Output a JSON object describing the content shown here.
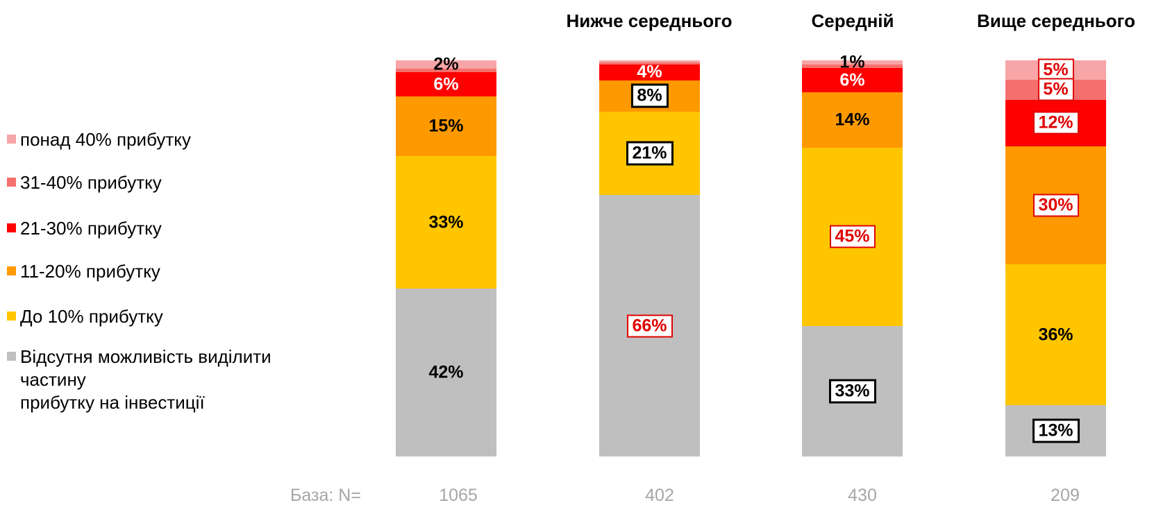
{
  "palette": {
    "pink": "#F7A5A6",
    "salmon": "#F4706E",
    "red": "#FE0000",
    "orange": "#FF9900",
    "yellow": "#FFC600",
    "gray": "#BFBFBF",
    "highlight_red": "#E00000",
    "muted_text": "#A6A6A6"
  },
  "legend": {
    "items": [
      {
        "label": "понад 40% прибутку",
        "color": "pink"
      },
      {
        "label": "31-40% прибутку",
        "color": "salmon"
      },
      {
        "label": "21-30% прибутку",
        "color": "red"
      },
      {
        "label": "11-20% прибутку",
        "color": "orange"
      },
      {
        "label": "До 10% прибутку",
        "color": "yellow"
      },
      {
        "label": "Відсутня можливість виділити частину\nприбутку на інвестиції",
        "color": "gray"
      }
    ]
  },
  "base_row": {
    "label": "База: N=",
    "values": [
      "1065",
      "402",
      "430",
      "209"
    ]
  },
  "chart_data": {
    "type": "bar",
    "subtype": "100%-stacked-columns",
    "unit": "%",
    "categories": [
      "",
      "Нижче середнього",
      "Середній",
      "Вище середнього"
    ],
    "base_n": [
      1065,
      402,
      430,
      209
    ],
    "series_order_top_to_bottom": [
      "понад 40% прибутку",
      "31-40% прибутку",
      "21-30% прибутку",
      "11-20% прибутку",
      "До 10% прибутку",
      "Відсутня можливість виділити частину прибутку на інвестиції"
    ],
    "series": [
      {
        "name": "понад 40% прибутку",
        "values": [
          2,
          0.5,
          1,
          5
        ]
      },
      {
        "name": "31-40% прибутку",
        "values": [
          1,
          0.5,
          1,
          5
        ]
      },
      {
        "name": "21-30% прибутку",
        "values": [
          6,
          4,
          6,
          12
        ]
      },
      {
        "name": "11-20% прибутку",
        "values": [
          15,
          8,
          14,
          30
        ]
      },
      {
        "name": "До 10% прибутку",
        "values": [
          33,
          21,
          45,
          36
        ]
      },
      {
        "name": "Відсутня можливість виділити частину прибутку на інвестиції",
        "values": [
          42,
          66,
          33,
          13
        ]
      }
    ],
    "bars": [
      {
        "category": "",
        "segments": [
          {
            "series": "понад 40% прибутку",
            "color": "pink",
            "value": 2,
            "label": "2%",
            "label_style": "plain-black"
          },
          {
            "series": "31-40% прибутку",
            "color": "salmon",
            "value": 1,
            "label": "",
            "label_style": ""
          },
          {
            "series": "21-30% прибутку",
            "color": "red",
            "value": 6,
            "label": "6%",
            "label_style": "plain-white"
          },
          {
            "series": "11-20% прибутку",
            "color": "orange",
            "value": 15,
            "label": "15%",
            "label_style": "plain-black"
          },
          {
            "series": "До 10% прибутку",
            "color": "yellow",
            "value": 33,
            "label": "33%",
            "label_style": "plain-black"
          },
          {
            "series": "Відсутня можливість",
            "color": "gray",
            "value": 42,
            "label": "42%",
            "label_style": "plain-black"
          }
        ]
      },
      {
        "category": "Нижче середнього",
        "segments": [
          {
            "series": "понад 40% прибутку",
            "color": "pink",
            "value": 0.5,
            "label": "",
            "label_style": ""
          },
          {
            "series": "31-40% прибутку",
            "color": "salmon",
            "value": 0.5,
            "label": "",
            "label_style": ""
          },
          {
            "series": "21-30% прибутку",
            "color": "red",
            "value": 4,
            "label": "4%",
            "label_style": "plain-white"
          },
          {
            "series": "11-20% прибутку",
            "color": "orange",
            "value": 8,
            "label": "8%",
            "label_style": "box-black"
          },
          {
            "series": "До 10% прибутку",
            "color": "yellow",
            "value": 21,
            "label": "21%",
            "label_style": "box-black"
          },
          {
            "series": "Відсутня можливість",
            "color": "gray",
            "value": 66,
            "label": "66%",
            "label_style": "box-red"
          }
        ]
      },
      {
        "category": "Середній",
        "segments": [
          {
            "series": "понад 40% прибутку",
            "color": "pink",
            "value": 1,
            "label": "1%",
            "label_style": "plain-black"
          },
          {
            "series": "31-40% прибутку",
            "color": "salmon",
            "value": 1,
            "label": "",
            "label_style": ""
          },
          {
            "series": "21-30% прибутку",
            "color": "red",
            "value": 6,
            "label": "6%",
            "label_style": "plain-white"
          },
          {
            "series": "11-20% прибутку",
            "color": "orange",
            "value": 14,
            "label": "14%",
            "label_style": "plain-black"
          },
          {
            "series": "До 10% прибутку",
            "color": "yellow",
            "value": 45,
            "label": "45%",
            "label_style": "box-red"
          },
          {
            "series": "Відсутня можливість",
            "color": "gray",
            "value": 33,
            "label": "33%",
            "label_style": "box-black"
          }
        ]
      },
      {
        "category": "Вище середнього",
        "segments": [
          {
            "series": "понад 40% прибутку",
            "color": "pink",
            "value": 5,
            "label": "5%",
            "label_style": "box-red"
          },
          {
            "series": "31-40% прибутку",
            "color": "salmon",
            "value": 5,
            "label": "5%",
            "label_style": "box-red"
          },
          {
            "series": "21-30% прибутку",
            "color": "red",
            "value": 12,
            "label": "12%",
            "label_style": "box-red"
          },
          {
            "series": "11-20% прибутку",
            "color": "orange",
            "value": 30,
            "label": "30%",
            "label_style": "box-red"
          },
          {
            "series": "До 10% прибутку",
            "color": "yellow",
            "value": 36,
            "label": "36%",
            "label_style": "plain-black"
          },
          {
            "series": "Відсутня можливість",
            "color": "gray",
            "value": 13,
            "label": "13%",
            "label_style": "box-black"
          }
        ]
      }
    ],
    "legend_position": "left",
    "grid": false,
    "axes_visible": false
  }
}
